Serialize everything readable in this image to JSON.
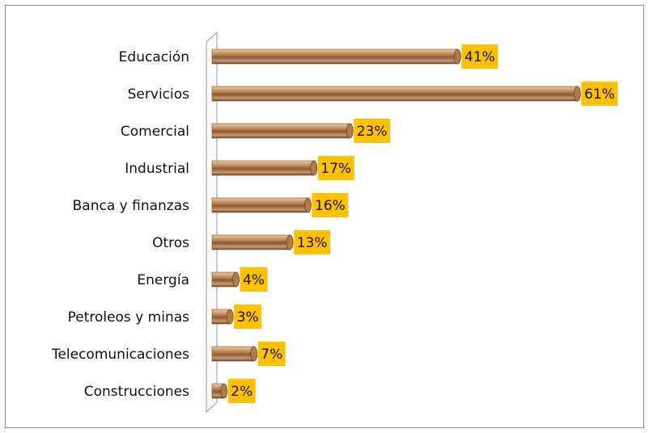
{
  "chart_data": {
    "type": "bar",
    "orientation": "horizontal",
    "categories": [
      "Educación",
      "Servicios",
      "Comercial",
      "Industrial",
      "Banca y finanzas",
      "Otros",
      "Energía",
      "Petroleos y minas",
      "Telecomunicaciones",
      "Construcciones"
    ],
    "values": [
      41,
      61,
      23,
      17,
      16,
      13,
      4,
      3,
      7,
      2
    ],
    "value_labels": [
      "41%",
      "61%",
      "23%",
      "17%",
      "16%",
      "13%",
      "4%",
      "3%",
      "7%",
      "2%"
    ],
    "color": "#b07a4a",
    "label_color": "#ffc000"
  }
}
